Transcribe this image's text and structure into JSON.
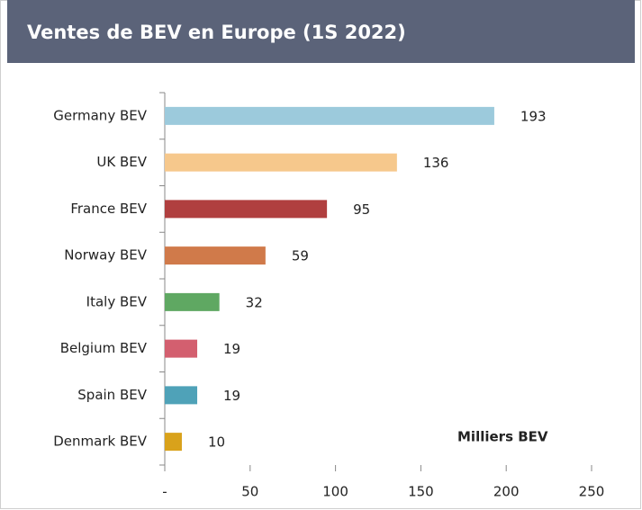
{
  "chart_data": {
    "type": "bar",
    "orientation": "horizontal",
    "title": "Ventes  de BEV en Europe (1S 2022)",
    "annotation": "Milliers BEV",
    "categories": [
      "Germany BEV",
      "UK BEV",
      "France BEV",
      "Norway BEV",
      "Italy BEV",
      "Belgium BEV",
      "Spain BEV",
      "Denmark BEV"
    ],
    "values": [
      193,
      136,
      95,
      59,
      32,
      19,
      19,
      10
    ],
    "colors": [
      "#9ccadc",
      "#f6c88c",
      "#b03f3f",
      "#d07a4a",
      "#5fa862",
      "#d35f6f",
      "#4fa2b8",
      "#d9a21b"
    ],
    "xlim": [
      0,
      250
    ],
    "xticks": [
      {
        "value": 0,
        "label": "-"
      },
      50,
      100,
      150,
      200,
      250
    ],
    "grid": false
  }
}
